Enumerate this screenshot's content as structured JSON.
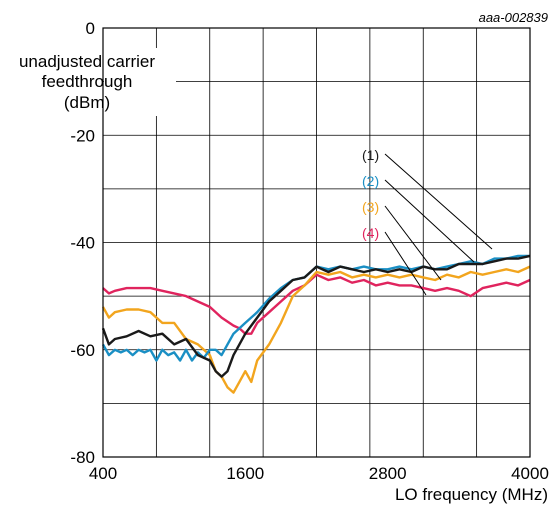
{
  "chart_data": {
    "type": "line",
    "reference": "aaa-002839",
    "ylabel": [
      "unadjusted carrier",
      "feedthrough",
      "(dBm)"
    ],
    "xlabel": "LO frequency (MHz)",
    "xlim": [
      400,
      4000
    ],
    "ylim": [
      -80,
      0
    ],
    "xticks": [
      "400",
      "1600",
      "2800",
      "4000"
    ],
    "yticks": [
      "0",
      "-20",
      "-40",
      "-60",
      "-80"
    ],
    "grid": true,
    "series": [
      {
        "name": "(1)",
        "color": "#1a1a1a",
        "points": [
          [
            400,
            -56
          ],
          [
            450,
            -59
          ],
          [
            500,
            -58
          ],
          [
            600,
            -57.5
          ],
          [
            700,
            -56.5
          ],
          [
            800,
            -57.5
          ],
          [
            900,
            -57
          ],
          [
            1000,
            -59
          ],
          [
            1100,
            -58
          ],
          [
            1200,
            -61
          ],
          [
            1300,
            -62
          ],
          [
            1350,
            -64
          ],
          [
            1400,
            -65
          ],
          [
            1450,
            -64
          ],
          [
            1500,
            -61
          ],
          [
            1550,
            -59
          ],
          [
            1600,
            -57
          ],
          [
            1700,
            -54
          ],
          [
            1800,
            -51
          ],
          [
            1900,
            -49
          ],
          [
            2000,
            -47
          ],
          [
            2100,
            -46.5
          ],
          [
            2200,
            -44.5
          ],
          [
            2300,
            -45.5
          ],
          [
            2400,
            -44.5
          ],
          [
            2500,
            -45
          ],
          [
            2600,
            -45.5
          ],
          [
            2700,
            -45
          ],
          [
            2800,
            -45.5
          ],
          [
            2900,
            -45
          ],
          [
            3000,
            -45.5
          ],
          [
            3100,
            -44.5
          ],
          [
            3200,
            -45
          ],
          [
            3300,
            -45
          ],
          [
            3400,
            -44
          ],
          [
            3500,
            -44
          ],
          [
            3600,
            -44
          ],
          [
            3700,
            -43.5
          ],
          [
            3800,
            -43
          ],
          [
            3900,
            -43
          ],
          [
            4000,
            -42.5
          ]
        ]
      },
      {
        "name": "(2)",
        "color": "#1a8fc4",
        "points": [
          [
            400,
            -59
          ],
          [
            450,
            -61
          ],
          [
            500,
            -60
          ],
          [
            550,
            -60.5
          ],
          [
            600,
            -60
          ],
          [
            650,
            -61
          ],
          [
            700,
            -60
          ],
          [
            750,
            -60.5
          ],
          [
            800,
            -60
          ],
          [
            850,
            -62
          ],
          [
            900,
            -60
          ],
          [
            950,
            -61
          ],
          [
            1000,
            -60.5
          ],
          [
            1050,
            -62
          ],
          [
            1100,
            -60
          ],
          [
            1150,
            -62
          ],
          [
            1200,
            -60.5
          ],
          [
            1250,
            -61.5
          ],
          [
            1300,
            -60
          ],
          [
            1350,
            -60
          ],
          [
            1400,
            -61
          ],
          [
            1450,
            -59
          ],
          [
            1500,
            -57
          ],
          [
            1600,
            -55
          ],
          [
            1700,
            -53
          ],
          [
            1800,
            -50.5
          ],
          [
            1900,
            -48.5
          ],
          [
            2000,
            -47
          ],
          [
            2100,
            -46.5
          ],
          [
            2200,
            -44.5
          ],
          [
            2300,
            -45
          ],
          [
            2400,
            -44.5
          ],
          [
            2500,
            -45
          ],
          [
            2600,
            -44.5
          ],
          [
            2700,
            -45
          ],
          [
            2800,
            -45
          ],
          [
            2900,
            -44.5
          ],
          [
            3000,
            -45
          ],
          [
            3100,
            -44.5
          ],
          [
            3200,
            -45
          ],
          [
            3300,
            -44.5
          ],
          [
            3400,
            -44
          ],
          [
            3500,
            -43.5
          ],
          [
            3600,
            -44
          ],
          [
            3700,
            -43
          ],
          [
            3800,
            -43
          ],
          [
            3900,
            -42.5
          ],
          [
            4000,
            -42.5
          ]
        ]
      },
      {
        "name": "(3)",
        "color": "#f2a51e",
        "points": [
          [
            400,
            -52
          ],
          [
            450,
            -54
          ],
          [
            500,
            -53
          ],
          [
            600,
            -52.5
          ],
          [
            700,
            -52.5
          ],
          [
            800,
            -53
          ],
          [
            900,
            -55
          ],
          [
            1000,
            -55
          ],
          [
            1100,
            -58
          ],
          [
            1200,
            -59
          ],
          [
            1300,
            -61
          ],
          [
            1350,
            -64
          ],
          [
            1400,
            -65
          ],
          [
            1450,
            -67
          ],
          [
            1500,
            -68
          ],
          [
            1550,
            -66
          ],
          [
            1600,
            -64
          ],
          [
            1650,
            -66
          ],
          [
            1700,
            -62
          ],
          [
            1800,
            -59
          ],
          [
            1900,
            -55
          ],
          [
            2000,
            -50
          ],
          [
            2100,
            -48
          ],
          [
            2200,
            -45.5
          ],
          [
            2300,
            -46
          ],
          [
            2400,
            -45.5
          ],
          [
            2500,
            -46.5
          ],
          [
            2600,
            -46
          ],
          [
            2700,
            -46.5
          ],
          [
            2800,
            -46
          ],
          [
            2900,
            -46.5
          ],
          [
            3000,
            -46
          ],
          [
            3100,
            -46.5
          ],
          [
            3200,
            -47
          ],
          [
            3300,
            -46
          ],
          [
            3400,
            -46.5
          ],
          [
            3500,
            -45.5
          ],
          [
            3600,
            -46
          ],
          [
            3700,
            -45.5
          ],
          [
            3800,
            -45
          ],
          [
            3900,
            -45.5
          ],
          [
            4000,
            -44.5
          ]
        ]
      },
      {
        "name": "(4)",
        "color": "#e0245e",
        "points": [
          [
            400,
            -48.5
          ],
          [
            450,
            -49.5
          ],
          [
            500,
            -49
          ],
          [
            600,
            -48.5
          ],
          [
            700,
            -48.5
          ],
          [
            800,
            -48.5
          ],
          [
            900,
            -49
          ],
          [
            1000,
            -49.5
          ],
          [
            1100,
            -50
          ],
          [
            1200,
            -51
          ],
          [
            1300,
            -52
          ],
          [
            1400,
            -54
          ],
          [
            1500,
            -55.5
          ],
          [
            1550,
            -56
          ],
          [
            1600,
            -57
          ],
          [
            1650,
            -57
          ],
          [
            1700,
            -55
          ],
          [
            1800,
            -53
          ],
          [
            1900,
            -51
          ],
          [
            2000,
            -49
          ],
          [
            2100,
            -48
          ],
          [
            2200,
            -46
          ],
          [
            2300,
            -47
          ],
          [
            2400,
            -46.5
          ],
          [
            2500,
            -47.5
          ],
          [
            2600,
            -47
          ],
          [
            2700,
            -48
          ],
          [
            2800,
            -47.5
          ],
          [
            2900,
            -48
          ],
          [
            3000,
            -48
          ],
          [
            3100,
            -48.5
          ],
          [
            3200,
            -49
          ],
          [
            3300,
            -48.5
          ],
          [
            3400,
            -49
          ],
          [
            3500,
            -50
          ],
          [
            3600,
            -48.5
          ],
          [
            3700,
            -48
          ],
          [
            3800,
            -47.5
          ],
          [
            3900,
            -48
          ],
          [
            4000,
            -47
          ]
        ]
      }
    ]
  }
}
